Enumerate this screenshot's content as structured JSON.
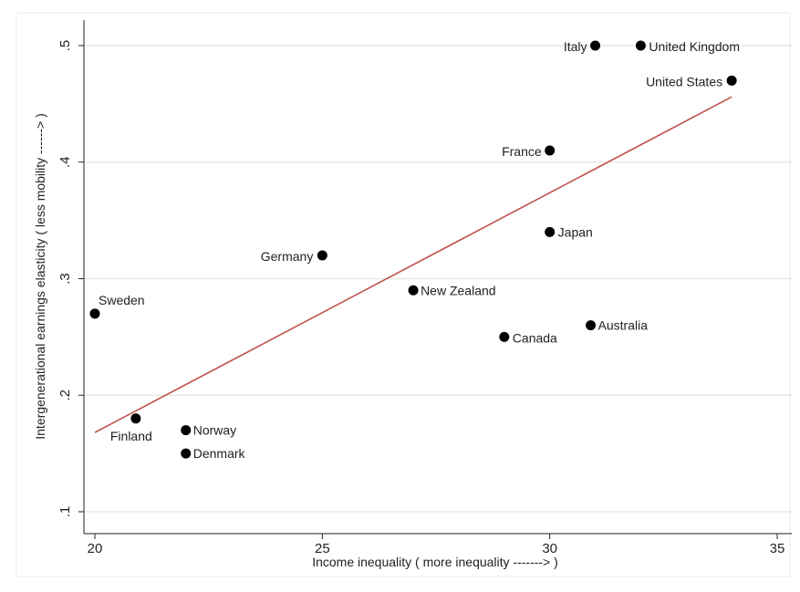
{
  "chart_data": {
    "type": "scatter",
    "title": "",
    "xlabel": "Income inequality ( more inequality -------> )",
    "ylabel": "Intergenerational earnings elasticity ( less mobility ------> )",
    "xlim": [
      19.9,
      35.1
    ],
    "ylim": [
      0.09,
      0.51
    ],
    "xticks": [
      20,
      25,
      30,
      35
    ],
    "xtick_labels": [
      "20",
      "25",
      "30",
      "35"
    ],
    "yticks": [
      0.1,
      0.2,
      0.3,
      0.4,
      0.5
    ],
    "ytick_labels": [
      ".1",
      ".2",
      ".3",
      ".4",
      ".5"
    ],
    "grid": "horizontal",
    "legend": "none",
    "points": [
      {
        "label": "Sweden",
        "x": 20.0,
        "y": 0.27
      },
      {
        "label": "Finland",
        "x": 20.9,
        "y": 0.18
      },
      {
        "label": "Norway",
        "x": 22.0,
        "y": 0.17
      },
      {
        "label": "Denmark",
        "x": 22.0,
        "y": 0.15
      },
      {
        "label": "Germany",
        "x": 25.0,
        "y": 0.32
      },
      {
        "label": "New Zealand",
        "x": 27.0,
        "y": 0.29
      },
      {
        "label": "Canada",
        "x": 29.0,
        "y": 0.25
      },
      {
        "label": "Japan",
        "x": 30.0,
        "y": 0.34
      },
      {
        "label": "France",
        "x": 30.0,
        "y": 0.41
      },
      {
        "label": "Australia",
        "x": 30.9,
        "y": 0.26
      },
      {
        "label": "Italy",
        "x": 31.0,
        "y": 0.5
      },
      {
        "label": "United Kingdom",
        "x": 32.0,
        "y": 0.5
      },
      {
        "label": "United States",
        "x": 34.0,
        "y": 0.47
      }
    ],
    "fit_line": {
      "x": [
        20.0,
        34.0
      ],
      "y": [
        0.168,
        0.456
      ],
      "color": "#c0504d"
    },
    "colors": {
      "marker": "#000000",
      "grid": "#e4e4e4",
      "axis": "#222222",
      "plot_border": "#f0f0f0"
    }
  }
}
